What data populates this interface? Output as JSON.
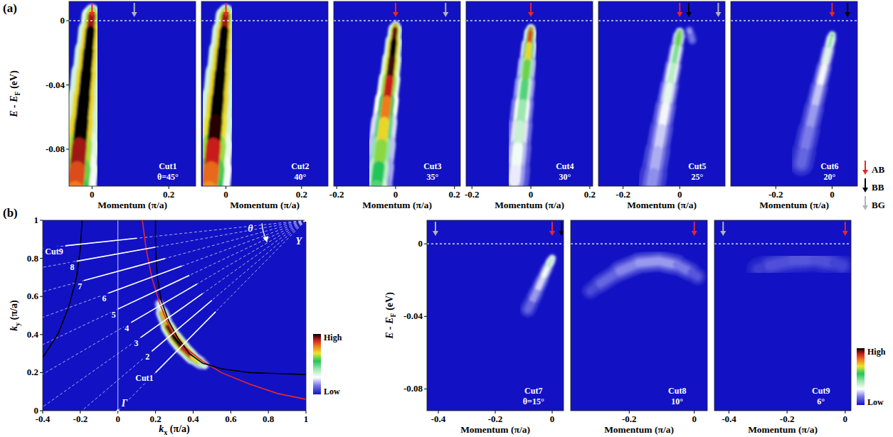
{
  "panel_labels": [
    "(a)",
    "(b)"
  ],
  "arrow_legend": [
    {
      "name": "AB",
      "color": "#e8262a"
    },
    {
      "name": "BB",
      "color": "#000000"
    },
    {
      "name": "BG",
      "color": "#b4b4b4"
    }
  ],
  "chart_data": [
    {
      "type": "arpes",
      "title": "Cut1",
      "subtitle": "θ=45°",
      "xlabel": "Momentum (π/a)",
      "ylabel": [
        "E - E",
        "F",
        " (eV)"
      ],
      "xlim": [
        -0.06,
        0.27
      ],
      "xticks": [
        0,
        0.2
      ],
      "ylim": [
        -0.103,
        0.012
      ],
      "yticks": [
        0,
        -0.04,
        -0.08
      ],
      "ef_line": 0,
      "zlim": [
        0,
        1
      ],
      "arrows": [
        {
          "name": "AB",
          "x": 0
        },
        {
          "name": "BG",
          "x": 0.11
        }
      ],
      "bands": [
        {
          "x": [
            0.0,
            -0.002,
            -0.007,
            -0.012,
            -0.018,
            -0.024,
            -0.03,
            -0.036,
            -0.042,
            -0.047
          ],
          "y": [
            0.006,
            0.0,
            -0.012,
            -0.025,
            -0.04,
            -0.055,
            -0.07,
            -0.085,
            -0.1,
            -0.11
          ],
          "intensity": [
            0.7,
            0.92,
            1,
            1,
            1,
            1,
            1,
            0.92,
            0.85,
            0.8
          ],
          "width": [
            0.014,
            0.02,
            0.024,
            0.027,
            0.03,
            0.033,
            0.036,
            0.039,
            0.042,
            0.044
          ]
        }
      ]
    },
    {
      "type": "arpes",
      "title": "Cut2",
      "subtitle": "40°",
      "xlabel": "Momentum (π/a)",
      "xlim": [
        -0.065,
        0.27
      ],
      "xticks": [
        0,
        0.2
      ],
      "ylim": [
        -0.103,
        0.012
      ],
      "ef_line": 0,
      "zlim": [
        0,
        1
      ],
      "arrows": [
        {
          "name": "AB",
          "x": 0
        }
      ],
      "bands": [
        {
          "x": [
            0.0,
            -0.002,
            -0.007,
            -0.012,
            -0.018,
            -0.024,
            -0.03,
            -0.036,
            -0.042,
            -0.047
          ],
          "y": [
            0.006,
            0.0,
            -0.012,
            -0.025,
            -0.04,
            -0.055,
            -0.07,
            -0.085,
            -0.1,
            -0.11
          ],
          "intensity": [
            0.7,
            0.92,
            1,
            1,
            1,
            1,
            0.98,
            0.9,
            0.82,
            0.78
          ],
          "width": [
            0.014,
            0.02,
            0.024,
            0.027,
            0.03,
            0.033,
            0.036,
            0.039,
            0.042,
            0.044
          ]
        }
      ]
    },
    {
      "type": "arpes",
      "title": "Cut3",
      "subtitle": "35°",
      "xlabel": "Momentum (π/a)",
      "xlim": [
        -0.21,
        0.22
      ],
      "xticks": [
        -0.2,
        0,
        0.2
      ],
      "ylim": [
        -0.103,
        0.012
      ],
      "ef_line": 0,
      "zlim": [
        0,
        1
      ],
      "arrows": [
        {
          "name": "AB",
          "x": 0
        },
        {
          "name": "BG",
          "x": 0.17
        }
      ],
      "bands": [
        {
          "x": [
            0.0,
            -0.003,
            -0.009,
            -0.016,
            -0.025,
            -0.034,
            -0.043,
            -0.052,
            -0.062,
            -0.068
          ],
          "y": [
            -0.003,
            -0.008,
            -0.018,
            -0.03,
            -0.043,
            -0.056,
            -0.07,
            -0.084,
            -0.098,
            -0.108
          ],
          "intensity": [
            0.75,
            0.95,
            1,
            0.97,
            0.9,
            0.8,
            0.7,
            0.62,
            0.55,
            0.5
          ],
          "width": [
            0.012,
            0.018,
            0.022,
            0.025,
            0.028,
            0.031,
            0.034,
            0.037,
            0.04,
            0.042
          ]
        }
      ]
    },
    {
      "type": "arpes",
      "title": "Cut4",
      "subtitle": "30°",
      "xlabel": "Momentum (π/a)",
      "xlim": [
        -0.22,
        0.21
      ],
      "xticks": [
        -0.2,
        0,
        0.2
      ],
      "ylim": [
        -0.103,
        0.012
      ],
      "ef_line": 0,
      "zlim": [
        0,
        1
      ],
      "arrows": [
        {
          "name": "AB",
          "x": 0
        }
      ],
      "bands": [
        {
          "x": [
            0.0,
            -0.003,
            -0.009,
            -0.016,
            -0.024,
            -0.032,
            -0.04,
            -0.048,
            -0.056
          ],
          "y": [
            -0.005,
            -0.01,
            -0.02,
            -0.032,
            -0.045,
            -0.058,
            -0.072,
            -0.086,
            -0.1
          ],
          "intensity": [
            0.8,
            0.85,
            0.7,
            0.6,
            0.5,
            0.42,
            0.36,
            0.3,
            0.26
          ],
          "width": [
            0.012,
            0.016,
            0.02,
            0.023,
            0.026,
            0.029,
            0.032,
            0.035,
            0.038
          ]
        }
      ]
    },
    {
      "type": "arpes",
      "title": "Cut5",
      "subtitle": "25°",
      "xlabel": "Momentum (π/a)",
      "xlim": [
        -0.287,
        0.16
      ],
      "xticks": [
        -0.2,
        0
      ],
      "ylim": [
        -0.103,
        0.012
      ],
      "ef_line": 0,
      "zlim": [
        0,
        1
      ],
      "arrows": [
        {
          "name": "AB",
          "x": 0
        },
        {
          "name": "BB",
          "x": 0.032
        },
        {
          "name": "BG",
          "x": 0.136
        }
      ],
      "bands": [
        {
          "x": [
            0.0,
            -0.005,
            -0.016,
            -0.029,
            -0.043,
            -0.057,
            -0.071,
            -0.085,
            -0.099
          ],
          "y": [
            -0.007,
            -0.012,
            -0.022,
            -0.034,
            -0.047,
            -0.06,
            -0.074,
            -0.088,
            -0.102
          ],
          "intensity": [
            0.62,
            0.6,
            0.45,
            0.38,
            0.32,
            0.27,
            0.23,
            0.2,
            0.17
          ],
          "width": [
            0.012,
            0.016,
            0.019,
            0.022,
            0.025,
            0.028,
            0.031,
            0.034,
            0.037
          ]
        },
        {
          "x": [
            0.034,
            0.044
          ],
          "y": [
            -0.006,
            -0.012
          ],
          "intensity": [
            0.18,
            0.14
          ],
          "width": [
            0.012,
            0.014
          ]
        }
      ]
    },
    {
      "type": "arpes",
      "title": "Cut6",
      "subtitle": "20°",
      "xlabel": "Momentum (π/a)",
      "xlim": [
        -0.36,
        0.09
      ],
      "xticks": [
        -0.2,
        0
      ],
      "ylim": [
        -0.103,
        0.012
      ],
      "ef_line": 0,
      "zlim": [
        0,
        1
      ],
      "arrows": [
        {
          "name": "AB",
          "x": 0
        },
        {
          "name": "BB",
          "x": 0.055
        }
      ],
      "bands": [
        {
          "x": [
            0.0,
            -0.006,
            -0.02,
            -0.037,
            -0.055,
            -0.073,
            -0.091,
            -0.109
          ],
          "y": [
            -0.009,
            -0.013,
            -0.023,
            -0.035,
            -0.048,
            -0.061,
            -0.075,
            -0.089
          ],
          "intensity": [
            0.48,
            0.42,
            0.33,
            0.27,
            0.22,
            0.18,
            0.15,
            0.12
          ],
          "width": [
            0.012,
            0.015,
            0.018,
            0.021,
            0.024,
            0.027,
            0.03,
            0.033
          ]
        }
      ]
    },
    {
      "type": "fermi_surface",
      "xlabel": [
        "k",
        "x",
        " (π/a)"
      ],
      "ylabel": [
        "k",
        "y",
        " (π/a)"
      ],
      "xlim": [
        -0.4,
        1
      ],
      "xticks": [
        -0.4,
        -0.2,
        0,
        0.2,
        0.4,
        0.6,
        0.8,
        1
      ],
      "ylim": [
        0,
        1
      ],
      "yticks": [
        0,
        0.2,
        0.4,
        0.6,
        0.8,
        1
      ],
      "zero_line": 0,
      "zlim": [
        0,
        1
      ],
      "curves": [
        {
          "color": "#e8262a",
          "x": [
            0.13,
            0.15,
            0.18,
            0.22,
            0.26,
            0.3,
            0.36,
            0.45,
            0.55,
            0.7,
            0.85,
            1.0
          ],
          "y": [
            1.0,
            0.85,
            0.7,
            0.57,
            0.47,
            0.4,
            0.33,
            0.26,
            0.2,
            0.14,
            0.09,
            0.06
          ]
        },
        {
          "color": "#000000",
          "x": [
            0.2,
            0.2,
            0.21,
            0.23,
            0.27,
            0.32,
            0.38,
            0.45,
            0.55,
            0.7,
            0.85,
            1.0
          ],
          "y": [
            1.0,
            0.85,
            0.7,
            0.58,
            0.47,
            0.38,
            0.3,
            0.25,
            0.22,
            0.2,
            0.195,
            0.19
          ]
        },
        {
          "color": "#000000",
          "x": [
            -0.19,
            -0.2,
            -0.22,
            -0.26,
            -0.32,
            -0.4
          ],
          "y": [
            1.0,
            0.85,
            0.7,
            0.55,
            0.4,
            0.28
          ]
        }
      ],
      "intensity_map": {
        "x": [
          0.22,
          0.25,
          0.28,
          0.32,
          0.37,
          0.42,
          0.46
        ],
        "y": [
          0.56,
          0.47,
          0.41,
          0.36,
          0.3,
          0.26,
          0.24
        ],
        "intensity": [
          0.35,
          0.75,
          0.95,
          1,
          0.9,
          0.7,
          0.4
        ],
        "width": [
          0.02,
          0.025,
          0.028,
          0.03,
          0.028,
          0.025,
          0.02
        ]
      },
      "cuts": [
        {
          "label": "Cut1",
          "theta": 45,
          "start": [
            0.2,
            0.2
          ],
          "end": [
            0.52,
            0.52
          ]
        },
        {
          "label": "2",
          "theta": 40,
          "start": [
            0.18,
            0.312
          ],
          "end": [
            0.5,
            0.58
          ]
        },
        {
          "label": "3",
          "theta": 35,
          "start": [
            0.12,
            0.384
          ],
          "end": [
            0.45,
            0.615
          ]
        },
        {
          "label": "4",
          "theta": 30,
          "start": [
            0.07,
            0.463
          ],
          "end": [
            0.42,
            0.665
          ]
        },
        {
          "label": "5",
          "theta": 25,
          "start": [
            0.0,
            0.534
          ],
          "end": [
            0.38,
            0.711
          ]
        },
        {
          "label": "6",
          "theta": 20,
          "start": [
            -0.05,
            0.618
          ],
          "end": [
            0.34,
            0.76
          ]
        },
        {
          "label": "7",
          "theta": 15,
          "start": [
            -0.18,
            0.684
          ],
          "end": [
            0.25,
            0.799
          ]
        },
        {
          "label": "8",
          "theta": 10,
          "start": [
            -0.22,
            0.785
          ],
          "end": [
            0.2,
            0.859
          ]
        },
        {
          "label": "Cut9",
          "theta": 6,
          "start": [
            -0.28,
            0.866
          ],
          "end": [
            0.1,
            0.906
          ]
        }
      ],
      "points": [
        {
          "label": "Y",
          "x": 1,
          "y": 1
        },
        {
          "label": "Γ",
          "x": 0,
          "y": 0
        }
      ],
      "angle_label": "θ",
      "colorbar": {
        "labels": [
          "High",
          "Low"
        ],
        "zlim": [
          0,
          1
        ]
      }
    },
    {
      "type": "arpes",
      "title": "Cut7",
      "subtitle": "θ=15°",
      "xlabel": "Momentum (π/a)",
      "ylabel": [
        "E - E",
        "F",
        " (eV)"
      ],
      "xlim": [
        -0.44,
        0.04
      ],
      "xticks": [
        -0.4,
        -0.2,
        0
      ],
      "ylim": [
        -0.092,
        0.013
      ],
      "yticks": [
        0,
        -0.04,
        -0.08
      ],
      "ef_line": 0,
      "zlim": [
        0,
        1
      ],
      "arrows": [
        {
          "name": "BG",
          "x": -0.41
        },
        {
          "name": "AB",
          "x": 0
        },
        {
          "name": "BB",
          "x": 0.033
        }
      ],
      "bands": [
        {
          "x": [
            0.0,
            -0.01,
            -0.025,
            -0.045,
            -0.065,
            -0.085
          ],
          "y": [
            -0.008,
            -0.011,
            -0.016,
            -0.023,
            -0.03,
            -0.036
          ],
          "intensity": [
            0.35,
            0.38,
            0.3,
            0.24,
            0.18,
            0.12
          ],
          "width": [
            0.012,
            0.014,
            0.016,
            0.018,
            0.02,
            0.022
          ]
        }
      ]
    },
    {
      "type": "arpes",
      "title": "Cut8",
      "subtitle": "10°",
      "xlabel": "Momentum (π/a)",
      "xlim": [
        -0.38,
        0.04
      ],
      "xticks": [
        -0.2,
        0
      ],
      "ylim": [
        -0.092,
        0.013
      ],
      "ef_line": 0,
      "zlim": [
        0,
        1
      ],
      "arrows": [
        {
          "name": "AB",
          "x": 0
        }
      ],
      "bands": [
        {
          "x": [
            -0.32,
            -0.26,
            -0.2,
            -0.14,
            -0.08,
            -0.03,
            0.01
          ],
          "y": [
            -0.026,
            -0.018,
            -0.012,
            -0.009,
            -0.01,
            -0.013,
            -0.018
          ],
          "intensity": [
            0.08,
            0.12,
            0.16,
            0.18,
            0.18,
            0.15,
            0.1
          ],
          "width": [
            0.02,
            0.022,
            0.024,
            0.024,
            0.024,
            0.022,
            0.02
          ]
        }
      ]
    },
    {
      "type": "arpes",
      "title": "Cut9",
      "subtitle": "6°",
      "xlabel": "Momentum (π/a)",
      "xlim": [
        -0.45,
        0.02
      ],
      "xticks": [
        -0.4,
        -0.2,
        0
      ],
      "ylim": [
        -0.092,
        0.013
      ],
      "ef_line": 0,
      "zlim": [
        0,
        1
      ],
      "arrows": [
        {
          "name": "BG",
          "x": -0.42
        },
        {
          "name": "AB",
          "x": 0
        }
      ],
      "bands": [
        {
          "x": [
            -0.3,
            -0.22,
            -0.14,
            -0.07,
            -0.01
          ],
          "y": [
            -0.014,
            -0.01,
            -0.008,
            -0.009,
            -0.012
          ],
          "intensity": [
            0.06,
            0.09,
            0.1,
            0.09,
            0.07
          ],
          "width": [
            0.03,
            0.032,
            0.032,
            0.032,
            0.03
          ]
        }
      ],
      "colorbar": {
        "labels": [
          "High",
          "Low"
        ],
        "zlim": [
          0,
          1
        ]
      }
    }
  ]
}
